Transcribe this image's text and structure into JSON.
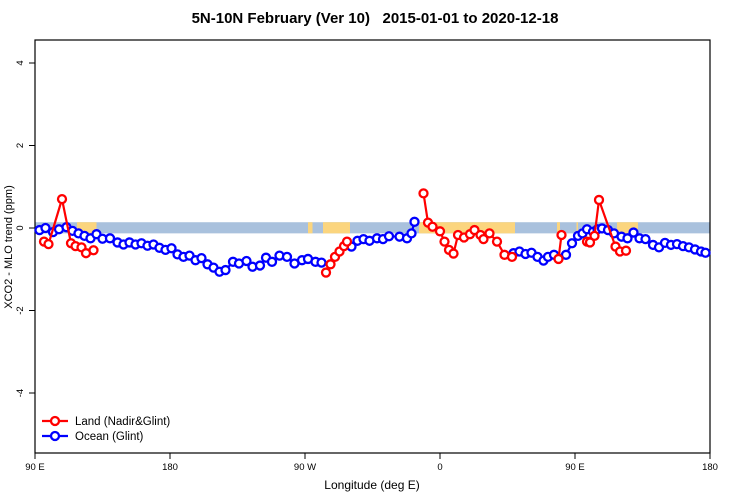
{
  "chart_data": {
    "type": "line",
    "title": "5N-10N February (Ver 10)   2015-01-01 to 2020-12-18",
    "xlabel": "Longitude (deg E)",
    "ylabel": "XCO2 - MLO trend (ppm)",
    "x_axis": {
      "min": 90,
      "max": 540,
      "ticks": [
        {
          "value": 90,
          "label": "90 E"
        },
        {
          "value": 180,
          "label": "180"
        },
        {
          "value": 270,
          "label": "90 W"
        },
        {
          "value": 360,
          "label": "0"
        },
        {
          "value": 450,
          "label": "90 E"
        },
        {
          "value": 540,
          "label": "180"
        }
      ]
    },
    "y_axis": {
      "min": -5.4,
      "max": 4.6,
      "ticks": [
        -4,
        -2,
        0,
        2,
        4
      ]
    },
    "grid": "off",
    "zero_band": {
      "ymin": -0.13,
      "ymax": 0.14,
      "ocean_color": "#a9c1dd",
      "land_color": "#fbd57e",
      "land_segments_deg": [
        [
          118,
          131
        ],
        [
          272,
          275
        ],
        [
          282,
          300
        ],
        [
          346,
          410
        ],
        [
          438,
          440
        ],
        [
          451,
          452
        ],
        [
          478,
          492
        ]
      ]
    },
    "legend": {
      "position": "bottom-left"
    },
    "series": [
      {
        "name": "Land (Nadir&Glint)",
        "color": "#ff0000",
        "segments": [
          [
            [
              96,
              -0.33
            ],
            [
              99,
              -0.39
            ],
            [
              108,
              0.7
            ],
            [
              114,
              -0.37
            ],
            [
              117,
              -0.44
            ],
            [
              121,
              -0.47
            ],
            [
              124,
              -0.61
            ],
            [
              129,
              -0.54
            ]
          ],
          [
            [
              284,
              -1.08
            ],
            [
              287,
              -0.88
            ],
            [
              290,
              -0.7
            ],
            [
              293,
              -0.57
            ],
            [
              296,
              -0.44
            ],
            [
              298,
              -0.33
            ]
          ],
          [
            [
              349,
              0.84
            ],
            [
              352,
              0.13
            ],
            [
              355,
              0.03
            ],
            [
              360,
              -0.08
            ],
            [
              363,
              -0.33
            ],
            [
              366,
              -0.53
            ],
            [
              369,
              -0.62
            ],
            [
              372,
              -0.17
            ],
            [
              376,
              -0.23
            ],
            [
              380,
              -0.15
            ],
            [
              383,
              -0.05
            ],
            [
              387,
              -0.17
            ],
            [
              389,
              -0.27
            ],
            [
              393,
              -0.13
            ],
            [
              398,
              -0.33
            ],
            [
              403,
              -0.65
            ],
            [
              408,
              -0.7
            ]
          ],
          [
            [
              439,
              -0.75
            ],
            [
              441,
              -0.17
            ]
          ],
          [
            [
              458,
              -0.33
            ],
            [
              460,
              -0.35
            ],
            [
              463,
              -0.19
            ],
            [
              466,
              0.68
            ],
            [
              477,
              -0.45
            ],
            [
              480,
              -0.57
            ],
            [
              484,
              -0.55
            ]
          ]
        ]
      },
      {
        "name": "Ocean (Glint)",
        "color": "#0000ff",
        "segments": [
          [
            [
              93,
              -0.05
            ],
            [
              97,
              0.0
            ],
            [
              102,
              -0.1
            ],
            [
              106,
              -0.03
            ],
            [
              111,
              0.02
            ],
            [
              115,
              -0.07
            ],
            [
              119,
              -0.13
            ],
            [
              123,
              -0.19
            ],
            [
              127,
              -0.25
            ],
            [
              131,
              -0.15
            ],
            [
              135,
              -0.26
            ],
            [
              140,
              -0.25
            ],
            [
              145,
              -0.35
            ],
            [
              149,
              -0.4
            ],
            [
              153,
              -0.35
            ],
            [
              157,
              -0.4
            ],
            [
              161,
              -0.37
            ],
            [
              165,
              -0.43
            ],
            [
              169,
              -0.4
            ],
            [
              173,
              -0.48
            ],
            [
              177,
              -0.53
            ],
            [
              181,
              -0.49
            ],
            [
              185,
              -0.64
            ],
            [
              189,
              -0.7
            ],
            [
              193,
              -0.67
            ],
            [
              197,
              -0.78
            ],
            [
              201,
              -0.73
            ],
            [
              205,
              -0.88
            ],
            [
              209,
              -0.96
            ],
            [
              213,
              -1.06
            ],
            [
              217,
              -1.02
            ],
            [
              222,
              -0.82
            ],
            [
              226,
              -0.86
            ],
            [
              231,
              -0.8
            ],
            [
              235,
              -0.94
            ],
            [
              240,
              -0.91
            ],
            [
              244,
              -0.72
            ],
            [
              248,
              -0.82
            ],
            [
              253,
              -0.67
            ],
            [
              258,
              -0.7
            ],
            [
              263,
              -0.86
            ],
            [
              268,
              -0.78
            ],
            [
              272,
              -0.75
            ],
            [
              277,
              -0.82
            ],
            [
              281,
              -0.84
            ]
          ],
          [
            [
              301,
              -0.45
            ],
            [
              305,
              -0.31
            ],
            [
              309,
              -0.27
            ],
            [
              313,
              -0.31
            ],
            [
              318,
              -0.25
            ],
            [
              322,
              -0.27
            ],
            [
              326,
              -0.2
            ],
            [
              333,
              -0.21
            ],
            [
              338,
              -0.25
            ],
            [
              341,
              -0.13
            ],
            [
              343,
              0.15
            ]
          ],
          [
            [
              409,
              -0.61
            ],
            [
              413,
              -0.57
            ],
            [
              417,
              -0.63
            ],
            [
              421,
              -0.6
            ],
            [
              425,
              -0.7
            ],
            [
              429,
              -0.79
            ],
            [
              432,
              -0.7
            ],
            [
              436,
              -0.65
            ],
            [
              444,
              -0.65
            ],
            [
              448,
              -0.37
            ],
            [
              452,
              -0.19
            ],
            [
              455,
              -0.13
            ],
            [
              458,
              -0.03
            ],
            [
              462,
              -0.09
            ],
            [
              465,
              -0.03
            ],
            [
              468,
              -0.01
            ],
            [
              472,
              -0.05
            ],
            [
              476,
              -0.13
            ],
            [
              481,
              -0.21
            ],
            [
              485,
              -0.25
            ],
            [
              489,
              -0.11
            ],
            [
              493,
              -0.25
            ],
            [
              497,
              -0.27
            ],
            [
              502,
              -0.41
            ],
            [
              506,
              -0.47
            ],
            [
              510,
              -0.36
            ],
            [
              514,
              -0.41
            ],
            [
              518,
              -0.39
            ],
            [
              522,
              -0.44
            ],
            [
              526,
              -0.47
            ],
            [
              530,
              -0.52
            ],
            [
              534,
              -0.57
            ],
            [
              537,
              -0.6
            ]
          ]
        ]
      }
    ]
  }
}
